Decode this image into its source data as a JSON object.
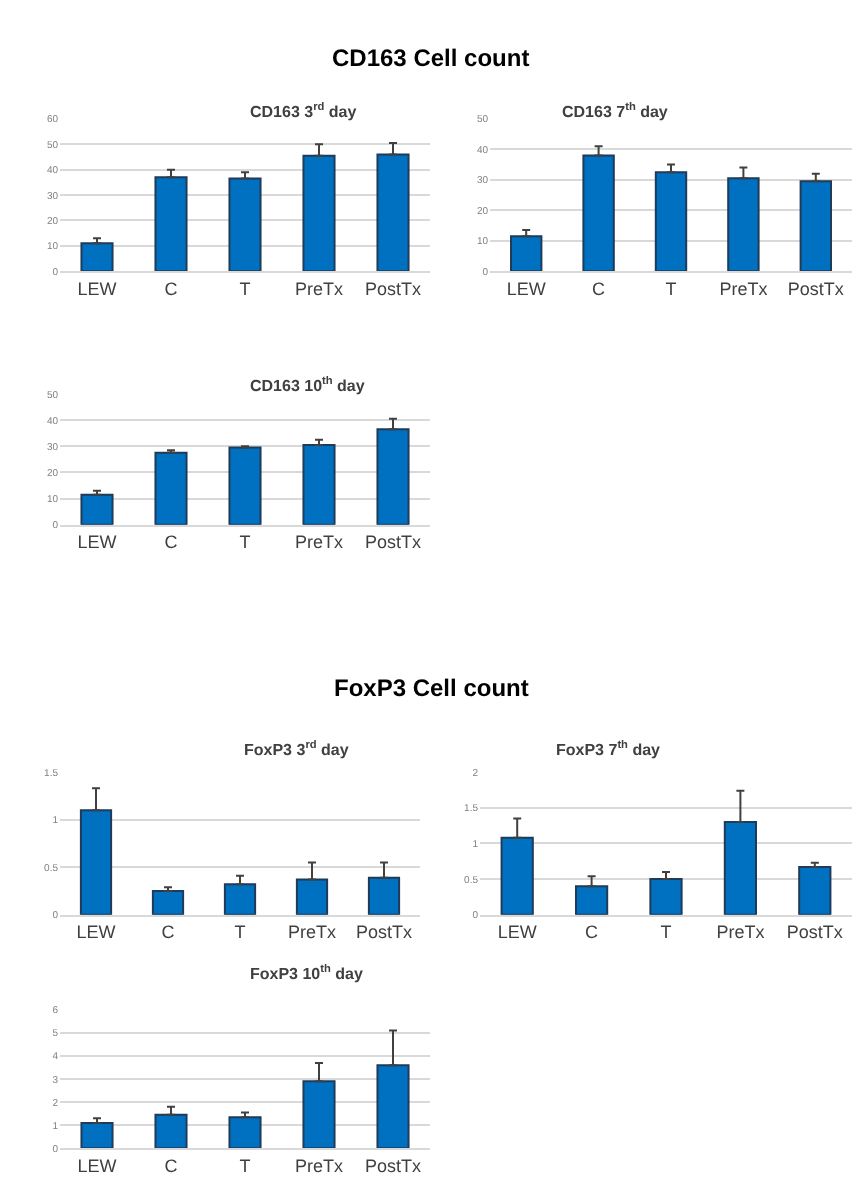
{
  "chart_data": [
    {
      "type": "bar",
      "title": "CD163 3$^{rd}$ day",
      "annotations": [
        "CD163 Cell count"
      ],
      "categories": [
        "LEW",
        "C",
        "T",
        "PreTx",
        "PostTx"
      ],
      "values": [
        11,
        37,
        36.5,
        45.5,
        46
      ],
      "errors": [
        [
          11,
          13
        ],
        [
          37,
          40
        ],
        [
          36.5,
          39
        ],
        [
          45.5,
          50
        ],
        [
          46,
          50.5
        ]
      ],
      "color": "#0070c0",
      "ylim": [
        0,
        60
      ],
      "yticks": [
        0,
        10,
        20,
        30,
        40,
        50,
        60
      ],
      "grid": "y"
    },
    {
      "type": "bar",
      "title": "CD163 7$^{th}$ day",
      "categories": [
        "LEW",
        "C",
        "T",
        "PreTx",
        "PostTx"
      ],
      "values": [
        11.5,
        38,
        32.5,
        30.5,
        29.5
      ],
      "errors": [
        [
          11.5,
          13.5
        ],
        [
          38,
          41
        ],
        [
          32.5,
          35
        ],
        [
          30.5,
          34
        ],
        [
          29.5,
          32
        ]
      ],
      "color": "#0070c0",
      "ylim": [
        0,
        50
      ],
      "yticks": [
        0,
        10,
        20,
        30,
        40,
        50
      ],
      "grid": "y"
    },
    {
      "type": "bar",
      "title": "CD163 10$^{th}$ day",
      "categories": [
        "LEW",
        "C",
        "T",
        "PreTx",
        "PostTx"
      ],
      "values": [
        11.5,
        27.5,
        29.5,
        30.5,
        36.5
      ],
      "errors": [
        [
          11.5,
          13
        ],
        [
          27.5,
          28.5
        ],
        [
          29.5,
          30
        ],
        [
          30.5,
          32.5
        ],
        [
          36.5,
          40.5
        ]
      ],
      "color": "#0070c0",
      "ylim": [
        0,
        50
      ],
      "yticks": [
        0,
        10,
        20,
        30,
        40,
        50
      ],
      "grid": "y"
    },
    {
      "type": "bar",
      "title": "FoxP3 3$^{rd}$ day",
      "annotations": [
        "FoxP3 Cell count"
      ],
      "categories": [
        "LEW",
        "C",
        "T",
        "PreTx",
        "PostTx"
      ],
      "values": [
        1.1,
        0.25,
        0.32,
        0.37,
        0.39
      ],
      "errors": [
        [
          1.1,
          1.33
        ],
        [
          0.25,
          0.29
        ],
        [
          0.32,
          0.41
        ],
        [
          0.37,
          0.55
        ],
        [
          0.39,
          0.55
        ]
      ],
      "color": "#0070c0",
      "ylim": [
        0,
        1.5
      ],
      "yticks": [
        0,
        0.5,
        1,
        1.5
      ],
      "grid": "y"
    },
    {
      "type": "bar",
      "title": "FoxP3 7$^{th}$ day",
      "categories": [
        "LEW",
        "C",
        "T",
        "PreTx",
        "PostTx"
      ],
      "values": [
        1.08,
        0.4,
        0.5,
        1.3,
        0.67
      ],
      "errors": [
        [
          1.08,
          1.35
        ],
        [
          0.4,
          0.54
        ],
        [
          0.5,
          0.6
        ],
        [
          1.3,
          1.74
        ],
        [
          0.67,
          0.73
        ]
      ],
      "color": "#0070c0",
      "ylim": [
        0,
        2
      ],
      "yticks": [
        0,
        0.5,
        1,
        1.5,
        2
      ],
      "grid": "y"
    },
    {
      "type": "bar",
      "title": "FoxP3 10$^{th}$ day",
      "categories": [
        "LEW",
        "C",
        "T",
        "PreTx",
        "PostTx"
      ],
      "values": [
        1.1,
        1.45,
        1.35,
        2.9,
        3.6
      ],
      "errors": [
        [
          1.1,
          1.3
        ],
        [
          1.45,
          1.8
        ],
        [
          1.35,
          1.55
        ],
        [
          2.9,
          3.7
        ],
        [
          3.6,
          5.1
        ]
      ],
      "color": "#0070c0",
      "ylim": [
        0,
        6
      ],
      "yticks": [
        0,
        1,
        2,
        3,
        4,
        5,
        6
      ],
      "grid": "y"
    }
  ]
}
